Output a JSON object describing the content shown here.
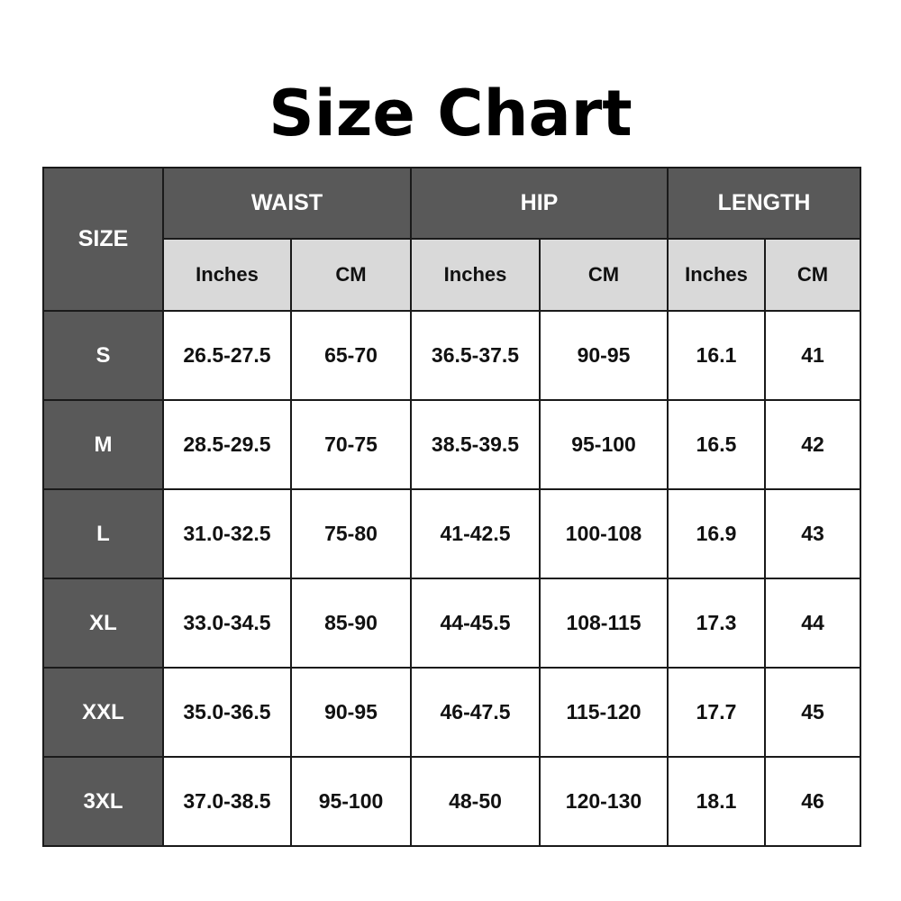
{
  "title": "Size Chart",
  "table": {
    "size_header": "SIZE",
    "groups": [
      "WAIST",
      "HIP",
      "LENGTH"
    ],
    "subheaders": [
      "Inches",
      "CM",
      "Inches",
      "CM",
      "Inches",
      "CM"
    ],
    "rows": [
      [
        "S",
        "26.5-27.5",
        "65-70",
        "36.5-37.5",
        "90-95",
        "16.1",
        "41"
      ],
      [
        "M",
        "28.5-29.5",
        "70-75",
        "38.5-39.5",
        "95-100",
        "16.5",
        "42"
      ],
      [
        "L",
        "31.0-32.5",
        "75-80",
        "41-42.5",
        "100-108",
        "16.9",
        "43"
      ],
      [
        "XL",
        "33.0-34.5",
        "85-90",
        "44-45.5",
        "108-115",
        "17.3",
        "44"
      ],
      [
        "XXL",
        "35.0-36.5",
        "90-95",
        "46-47.5",
        "115-120",
        "17.7",
        "45"
      ],
      [
        "3XL",
        "37.0-38.5",
        "95-100",
        "48-50",
        "120-130",
        "18.1",
        "46"
      ]
    ]
  },
  "colors": {
    "header_dark": "#595959",
    "header_light": "#d9d9d9",
    "border": "#1a1a1a"
  }
}
